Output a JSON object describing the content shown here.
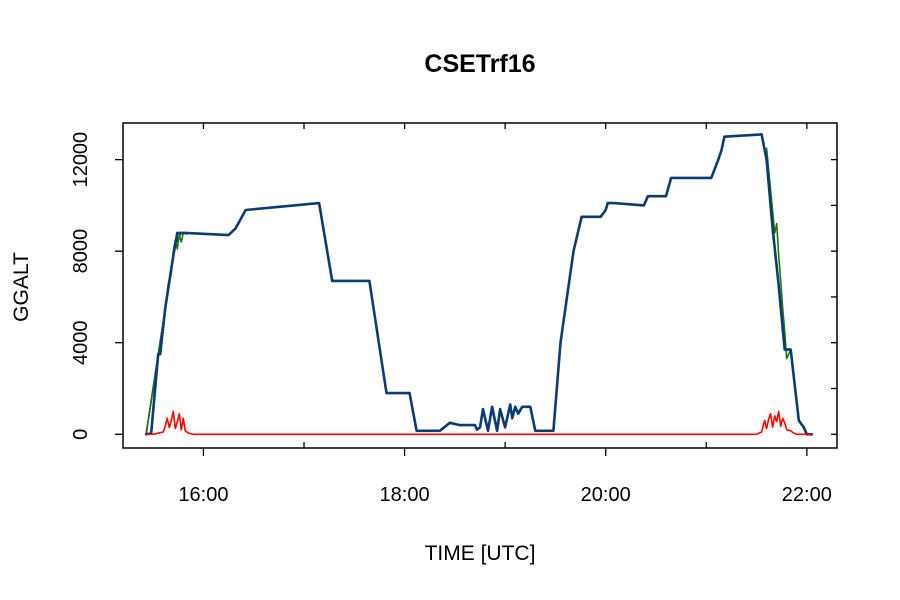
{
  "chart_data": {
    "type": "line",
    "title": "CSETrf16",
    "xlabel": "TIME [UTC]",
    "ylabel": "GGALT",
    "x_unit": "hours UTC",
    "xlim": [
      15.2,
      22.3
    ],
    "ylim": [
      -600,
      13600
    ],
    "x_ticks": [
      {
        "value": 16,
        "label": "16:00"
      },
      {
        "value": 18,
        "label": "18:00"
      },
      {
        "value": 20,
        "label": "20:00"
      },
      {
        "value": 22,
        "label": "22:00"
      }
    ],
    "y_ticks": [
      {
        "value": 0,
        "label": "0"
      },
      {
        "value": 4000,
        "label": "4000"
      },
      {
        "value": 8000,
        "label": "8000"
      },
      {
        "value": 12000,
        "label": "12000"
      }
    ],
    "y_minor_ticks": [
      2000,
      6000,
      10000
    ],
    "x_minor_ticks": [
      17,
      19,
      21
    ],
    "grid": false,
    "legend": "none",
    "colors": {
      "main": "#0b3b75",
      "blue": "#0000ff",
      "green": "#1a7a00",
      "red": "#ff0000",
      "axis": "#000000"
    },
    "series": [
      {
        "color": "#0000ff",
        "x": [
          15.43,
          15.55,
          15.72,
          15.78
        ],
        "y": [
          0,
          3500,
          8300,
          8800
        ]
      },
      {
        "color": "#1a7a00",
        "x": [
          15.43,
          15.55,
          15.62,
          15.65,
          15.68,
          15.7,
          15.72,
          15.74,
          15.76,
          15.78,
          15.8,
          15.83
        ],
        "y": [
          0,
          3400,
          5500,
          6600,
          7000,
          8000,
          8500,
          8100,
          8700,
          8400,
          8800,
          8750
        ]
      },
      {
        "color": "#1a7a00",
        "x": [
          21.6,
          21.68,
          21.7,
          21.72,
          21.74,
          21.76,
          21.78,
          21.8,
          21.84
        ],
        "y": [
          12500,
          8800,
          9200,
          7800,
          6700,
          5500,
          4500,
          3300,
          3700
        ]
      },
      {
        "color": "#0b3b75",
        "x": [
          15.43,
          15.48,
          15.55,
          15.57,
          15.62,
          15.7,
          15.74,
          15.82,
          16.25,
          16.32,
          16.42,
          17.15,
          17.28,
          17.65,
          17.82,
          18.05,
          18.12,
          18.35,
          18.45,
          18.5,
          18.55,
          18.65,
          18.7,
          18.72,
          18.75,
          18.78,
          18.83,
          18.87,
          18.92,
          18.95,
          19.0,
          19.05,
          19.07,
          19.1,
          19.13,
          19.17,
          19.2,
          19.25,
          19.3,
          19.37,
          19.48,
          19.55,
          19.68,
          19.76,
          19.83,
          19.95,
          20.0,
          20.02,
          20.08,
          20.38,
          20.42,
          20.6,
          20.65,
          20.95,
          21.05,
          21.12,
          21.15,
          21.18,
          21.55,
          21.6,
          21.66,
          21.72,
          21.78,
          21.8,
          21.84,
          21.87,
          21.92,
          21.97,
          22.0,
          22.05
        ],
        "y": [
          0,
          50,
          3500,
          3500,
          5500,
          7800,
          8800,
          8800,
          8700,
          9000,
          9800,
          10100,
          6700,
          6700,
          1800,
          1800,
          150,
          150,
          500,
          450,
          400,
          400,
          400,
          200,
          300,
          1100,
          150,
          1200,
          150,
          1100,
          300,
          1300,
          700,
          1200,
          900,
          1200,
          1200,
          1200,
          150,
          150,
          150,
          4000,
          8000,
          9500,
          9500,
          9500,
          9800,
          10100,
          10100,
          10000,
          10400,
          10400,
          11200,
          11200,
          11200,
          12000,
          12400,
          13000,
          13100,
          12000,
          9000,
          6500,
          3700,
          3700,
          3700,
          2500,
          600,
          300,
          0,
          0
        ]
      },
      {
        "color": "#ff0000",
        "x": [
          15.43,
          15.5,
          15.6,
          15.62,
          15.64,
          15.66,
          15.68,
          15.7,
          15.72,
          15.74,
          15.76,
          15.78,
          15.8,
          15.82,
          15.85,
          15.9,
          21.5,
          21.55,
          21.58,
          21.6,
          21.62,
          21.64,
          21.66,
          21.68,
          21.7,
          21.72,
          21.74,
          21.76,
          21.78,
          21.8,
          21.84,
          21.87,
          21.9,
          22.05
        ],
        "y": [
          0,
          0,
          100,
          350,
          700,
          300,
          600,
          1000,
          250,
          550,
          900,
          200,
          700,
          150,
          50,
          0,
          0,
          100,
          600,
          250,
          650,
          900,
          300,
          800,
          550,
          1000,
          350,
          700,
          500,
          200,
          150,
          50,
          0,
          0
        ]
      }
    ]
  }
}
